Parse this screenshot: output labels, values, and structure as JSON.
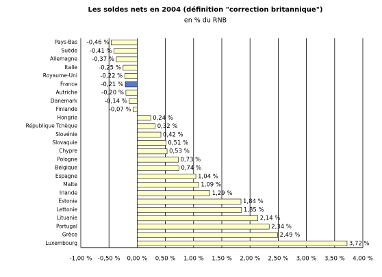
{
  "chart_data": {
    "type": "hbar",
    "title": "Les soldes nets en 2004 (définition \"correction britannique\")",
    "subtitle": "en % du RNB",
    "categories": [
      "Pays-Bas",
      "Suède",
      "Allemagne",
      "Italie",
      "Royaume-Uni",
      "France",
      "Autriche",
      "Danemark",
      "Finlande",
      "Hongrie",
      "République Tchèque",
      "Slovénie",
      "Slovaquie",
      "Chypre",
      "Pologne",
      "Belgique",
      "Espagne",
      "Malte",
      "Irlande",
      "Estonie",
      "Lettonie",
      "Lituanie",
      "Portugal",
      "Grèce",
      "Luxembourg"
    ],
    "values": [
      -0.46,
      -0.41,
      -0.37,
      -0.25,
      -0.22,
      -0.21,
      -0.2,
      -0.14,
      -0.07,
      0.24,
      0.32,
      0.42,
      0.51,
      0.53,
      0.73,
      0.74,
      1.04,
      1.09,
      1.29,
      1.84,
      1.85,
      2.14,
      2.34,
      2.49,
      3.72
    ],
    "value_labels": [
      "-0,46 %",
      "-0,41 %",
      "-0,37 %",
      "-0,25 %",
      "-0,22 %",
      "-0,21 %",
      "-0,20 %",
      "-0,14 %",
      "-0,07 %",
      "0,24 %",
      "0,32 %",
      "0,42 %",
      "0,51 %",
      "0,53 %",
      "0,73 %",
      "0,74 %",
      "1,04 %",
      "1,09 %",
      "1,29 %",
      "1,84 %",
      "1,85 %",
      "2,14 %",
      "2,34 %",
      "2,49 %",
      "3,72 %"
    ],
    "colors": [
      "#ffffc8",
      "#ffffc8",
      "#ffffc8",
      "#ffffc8",
      "#ffffc8",
      "#5577cc",
      "#ffffc8",
      "#ffffc8",
      "#ffffc8",
      "#ffffc8",
      "#ffffc8",
      "#ffffc8",
      "#ffffc8",
      "#ffffc8",
      "#ffffc8",
      "#ffffc8",
      "#ffffc8",
      "#ffffc8",
      "#ffffc8",
      "#ffffc8",
      "#ffffc8",
      "#ffffc8",
      "#ffffc8",
      "#ffffc8",
      "#ffffc8"
    ],
    "xlim": [
      -1,
      4
    ],
    "xticks": [
      {
        "value": -1,
        "label": "-1,00 %"
      },
      {
        "value": -0.5,
        "label": "-0,50 %"
      },
      {
        "value": 0,
        "label": "0,00 %"
      },
      {
        "value": 0.5,
        "label": "0,50 %"
      },
      {
        "value": 1,
        "label": "1,00 %"
      },
      {
        "value": 1.5,
        "label": "1,50 %"
      },
      {
        "value": 2,
        "label": "2,00 %"
      },
      {
        "value": 2.5,
        "label": "2,50 %"
      },
      {
        "value": 3,
        "label": "3,00 %"
      },
      {
        "value": 3.5,
        "label": "3,50 %"
      },
      {
        "value": 4,
        "label": "4,00 %"
      }
    ],
    "grid": true
  }
}
